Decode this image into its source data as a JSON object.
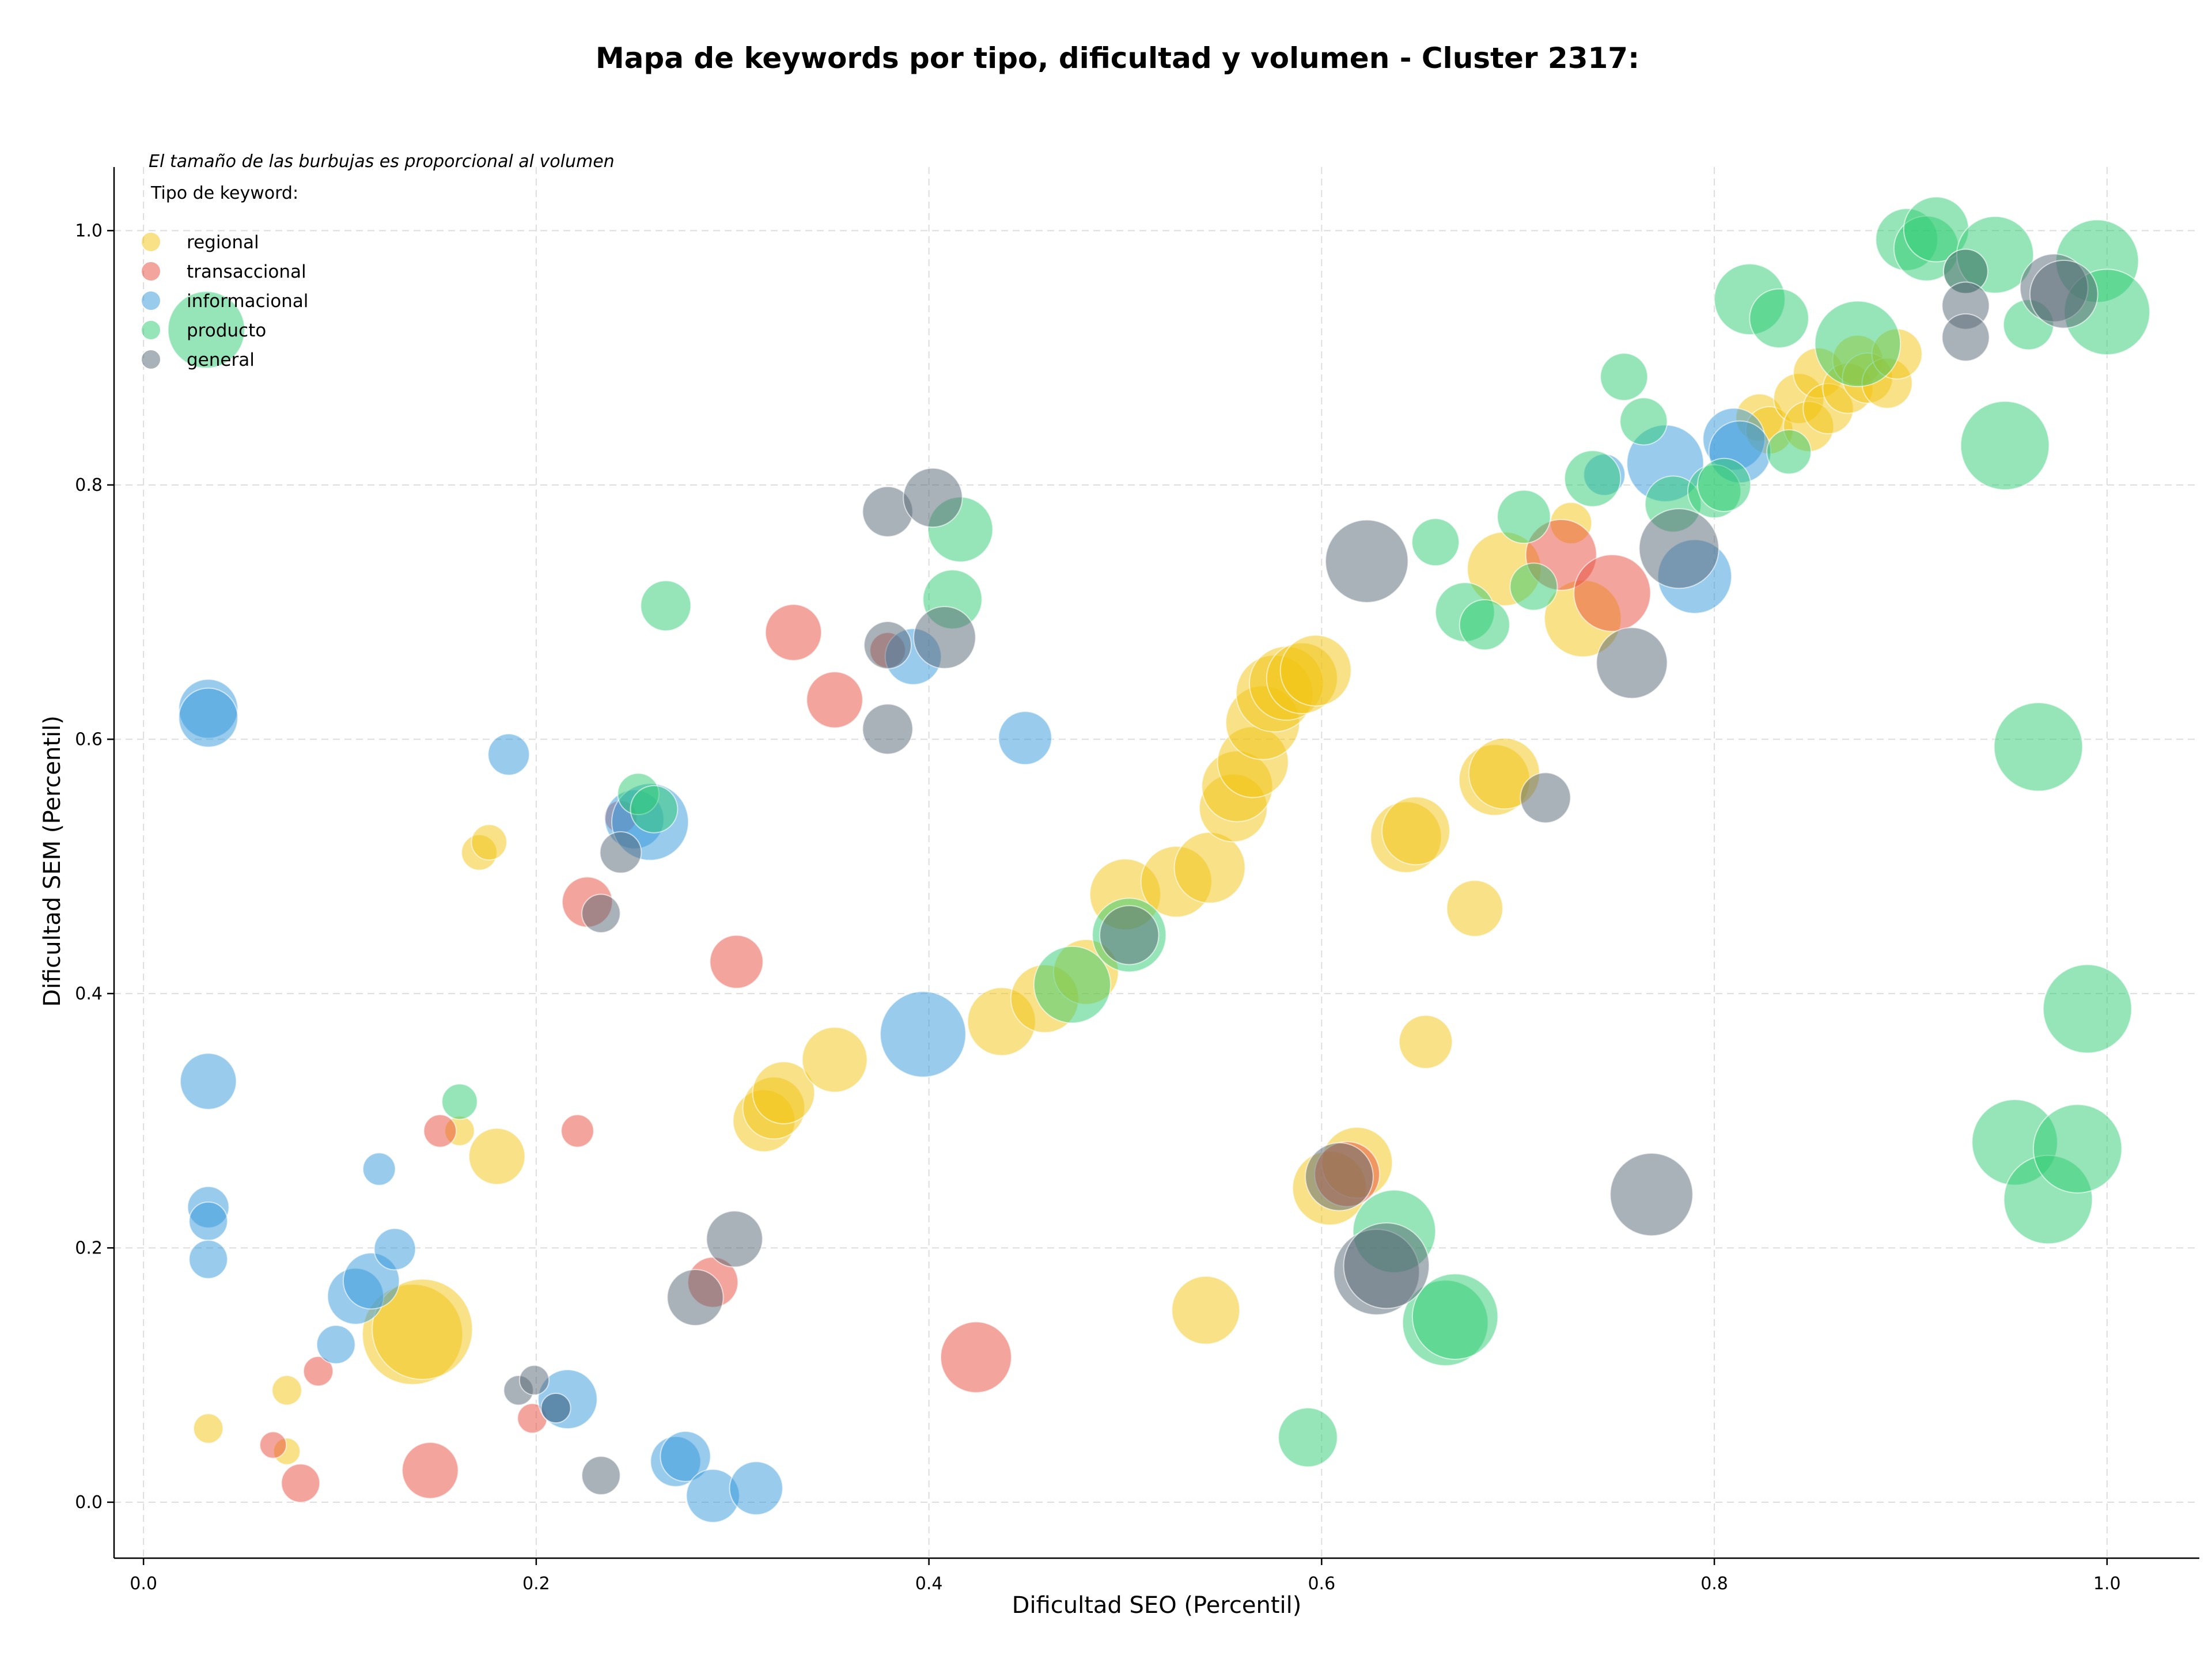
{
  "chart_data": {
    "type": "scatter",
    "title": "Mapa de keywords por tipo, dificultad y volumen - Cluster 2317:",
    "subtitle": "El tamaño de las burbujas es proporcional al volumen",
    "xlabel": "Dificultad SEO (Percentil)",
    "ylabel": "Dificultad SEM (Percentil)",
    "xlim": [
      -0.015,
      1.047
    ],
    "ylim": [
      -0.044,
      1.05
    ],
    "xticks": [
      0.0,
      0.2,
      0.4,
      0.6,
      0.8,
      1.0
    ],
    "xtick_labels": [
      "0.0",
      "0.2",
      "0.4",
      "0.6",
      "0.8",
      "1.0"
    ],
    "yticks": [
      0.0,
      0.2,
      0.4,
      0.6,
      0.8,
      1.0
    ],
    "ytick_labels": [
      "0.0",
      "0.2",
      "0.4",
      "0.6",
      "0.8",
      "1.0"
    ],
    "grid": true,
    "legend": {
      "title": "Tipo de keyword:",
      "placement": "top-left"
    },
    "series": [
      {
        "name": "regional",
        "color": "#f1c40f",
        "points": [
          {
            "x": 0.033,
            "y": 0.058,
            "r": 10
          },
          {
            "x": 0.073,
            "y": 0.088,
            "r": 10
          },
          {
            "x": 0.073,
            "y": 0.04,
            "r": 9
          },
          {
            "x": 0.137,
            "y": 0.132,
            "r": 34
          },
          {
            "x": 0.142,
            "y": 0.136,
            "r": 34
          },
          {
            "x": 0.161,
            "y": 0.292,
            "r": 10
          },
          {
            "x": 0.171,
            "y": 0.511,
            "r": 12
          },
          {
            "x": 0.176,
            "y": 0.519,
            "r": 12
          },
          {
            "x": 0.18,
            "y": 0.272,
            "r": 19
          },
          {
            "x": 0.316,
            "y": 0.3,
            "r": 21
          },
          {
            "x": 0.321,
            "y": 0.31,
            "r": 21
          },
          {
            "x": 0.326,
            "y": 0.322,
            "r": 21
          },
          {
            "x": 0.352,
            "y": 0.348,
            "r": 22
          },
          {
            "x": 0.437,
            "y": 0.378,
            "r": 23
          },
          {
            "x": 0.459,
            "y": 0.396,
            "r": 23
          },
          {
            "x": 0.48,
            "y": 0.417,
            "r": 22
          },
          {
            "x": 0.5,
            "y": 0.478,
            "r": 24
          },
          {
            "x": 0.526,
            "y": 0.488,
            "r": 24
          },
          {
            "x": 0.543,
            "y": 0.499,
            "r": 24
          },
          {
            "x": 0.541,
            "y": 0.151,
            "r": 23
          },
          {
            "x": 0.555,
            "y": 0.546,
            "r": 23
          },
          {
            "x": 0.557,
            "y": 0.563,
            "r": 24
          },
          {
            "x": 0.565,
            "y": 0.582,
            "r": 24
          },
          {
            "x": 0.57,
            "y": 0.613,
            "r": 25
          },
          {
            "x": 0.576,
            "y": 0.636,
            "r": 26
          },
          {
            "x": 0.582,
            "y": 0.644,
            "r": 25
          },
          {
            "x": 0.59,
            "y": 0.648,
            "r": 24
          },
          {
            "x": 0.597,
            "y": 0.654,
            "r": 24
          },
          {
            "x": 0.604,
            "y": 0.247,
            "r": 25
          },
          {
            "x": 0.618,
            "y": 0.267,
            "r": 24
          },
          {
            "x": 0.643,
            "y": 0.523,
            "r": 24
          },
          {
            "x": 0.648,
            "y": 0.528,
            "r": 23
          },
          {
            "x": 0.653,
            "y": 0.362,
            "r": 18
          },
          {
            "x": 0.678,
            "y": 0.467,
            "r": 19
          },
          {
            "x": 0.688,
            "y": 0.568,
            "r": 24
          },
          {
            "x": 0.693,
            "y": 0.573,
            "r": 24
          },
          {
            "x": 0.693,
            "y": 0.734,
            "r": 25
          },
          {
            "x": 0.727,
            "y": 0.77,
            "r": 14
          },
          {
            "x": 0.733,
            "y": 0.695,
            "r": 26
          },
          {
            "x": 0.823,
            "y": 0.853,
            "r": 16
          },
          {
            "x": 0.828,
            "y": 0.843,
            "r": 16
          },
          {
            "x": 0.843,
            "y": 0.868,
            "r": 17
          },
          {
            "x": 0.848,
            "y": 0.846,
            "r": 17
          },
          {
            "x": 0.853,
            "y": 0.888,
            "r": 17
          },
          {
            "x": 0.858,
            "y": 0.86,
            "r": 17
          },
          {
            "x": 0.868,
            "y": 0.876,
            "r": 17
          },
          {
            "x": 0.873,
            "y": 0.898,
            "r": 17
          },
          {
            "x": 0.878,
            "y": 0.884,
            "r": 17
          },
          {
            "x": 0.888,
            "y": 0.88,
            "r": 17
          },
          {
            "x": 0.893,
            "y": 0.903,
            "r": 17
          }
        ]
      },
      {
        "name": "transaccional",
        "color": "#e74c3c",
        "points": [
          {
            "x": 0.066,
            "y": 0.045,
            "r": 9
          },
          {
            "x": 0.08,
            "y": 0.015,
            "r": 13
          },
          {
            "x": 0.089,
            "y": 0.103,
            "r": 10
          },
          {
            "x": 0.146,
            "y": 0.025,
            "r": 19
          },
          {
            "x": 0.151,
            "y": 0.292,
            "r": 11
          },
          {
            "x": 0.198,
            "y": 0.066,
            "r": 10
          },
          {
            "x": 0.221,
            "y": 0.292,
            "r": 11
          },
          {
            "x": 0.226,
            "y": 0.472,
            "r": 17
          },
          {
            "x": 0.243,
            "y": 0.539,
            "r": 11
          },
          {
            "x": 0.29,
            "y": 0.173,
            "r": 17
          },
          {
            "x": 0.302,
            "y": 0.425,
            "r": 18
          },
          {
            "x": 0.331,
            "y": 0.684,
            "r": 19
          },
          {
            "x": 0.352,
            "y": 0.631,
            "r": 19
          },
          {
            "x": 0.379,
            "y": 0.67,
            "r": 12
          },
          {
            "x": 0.424,
            "y": 0.114,
            "r": 24
          },
          {
            "x": 0.613,
            "y": 0.258,
            "r": 22
          },
          {
            "x": 0.722,
            "y": 0.745,
            "r": 24
          },
          {
            "x": 0.748,
            "y": 0.715,
            "r": 26
          }
        ]
      },
      {
        "name": "informacional",
        "color": "#3498db",
        "points": [
          {
            "x": 0.033,
            "y": 0.624,
            "r": 20
          },
          {
            "x": 0.033,
            "y": 0.617,
            "r": 20
          },
          {
            "x": 0.033,
            "y": 0.331,
            "r": 19
          },
          {
            "x": 0.033,
            "y": 0.232,
            "r": 14
          },
          {
            "x": 0.033,
            "y": 0.221,
            "r": 13
          },
          {
            "x": 0.033,
            "y": 0.191,
            "r": 13
          },
          {
            "x": 0.098,
            "y": 0.124,
            "r": 13
          },
          {
            "x": 0.108,
            "y": 0.162,
            "r": 19
          },
          {
            "x": 0.116,
            "y": 0.174,
            "r": 19
          },
          {
            "x": 0.12,
            "y": 0.262,
            "r": 11
          },
          {
            "x": 0.128,
            "y": 0.199,
            "r": 14
          },
          {
            "x": 0.186,
            "y": 0.588,
            "r": 14
          },
          {
            "x": 0.21,
            "y": 0.074,
            "r": 10
          },
          {
            "x": 0.216,
            "y": 0.081,
            "r": 20
          },
          {
            "x": 0.25,
            "y": 0.537,
            "r": 20
          },
          {
            "x": 0.258,
            "y": 0.535,
            "r": 26
          },
          {
            "x": 0.271,
            "y": 0.032,
            "r": 17
          },
          {
            "x": 0.276,
            "y": 0.036,
            "r": 17
          },
          {
            "x": 0.29,
            "y": 0.005,
            "r": 18
          },
          {
            "x": 0.312,
            "y": 0.011,
            "r": 18
          },
          {
            "x": 0.392,
            "y": 0.665,
            "r": 19
          },
          {
            "x": 0.397,
            "y": 0.368,
            "r": 29
          },
          {
            "x": 0.449,
            "y": 0.601,
            "r": 18
          },
          {
            "x": 0.744,
            "y": 0.808,
            "r": 14
          },
          {
            "x": 0.775,
            "y": 0.817,
            "r": 26
          },
          {
            "x": 0.79,
            "y": 0.728,
            "r": 25
          },
          {
            "x": 0.81,
            "y": 0.836,
            "r": 21
          },
          {
            "x": 0.813,
            "y": 0.826,
            "r": 21
          }
        ]
      },
      {
        "name": "producto",
        "color": "#2ecc71",
        "points": [
          {
            "x": 0.032,
            "y": 0.922,
            "r": 26
          },
          {
            "x": 0.161,
            "y": 0.315,
            "r": 12
          },
          {
            "x": 0.252,
            "y": 0.557,
            "r": 14
          },
          {
            "x": 0.26,
            "y": 0.545,
            "r": 16
          },
          {
            "x": 0.266,
            "y": 0.705,
            "r": 17
          },
          {
            "x": 0.412,
            "y": 0.71,
            "r": 20
          },
          {
            "x": 0.416,
            "y": 0.765,
            "r": 22
          },
          {
            "x": 0.473,
            "y": 0.407,
            "r": 26
          },
          {
            "x": 0.502,
            "y": 0.446,
            "r": 25
          },
          {
            "x": 0.593,
            "y": 0.051,
            "r": 20
          },
          {
            "x": 0.637,
            "y": 0.213,
            "r": 28
          },
          {
            "x": 0.658,
            "y": 0.755,
            "r": 16
          },
          {
            "x": 0.663,
            "y": 0.141,
            "r": 29
          },
          {
            "x": 0.668,
            "y": 0.146,
            "r": 29
          },
          {
            "x": 0.673,
            "y": 0.7,
            "r": 20
          },
          {
            "x": 0.683,
            "y": 0.69,
            "r": 17
          },
          {
            "x": 0.703,
            "y": 0.775,
            "r": 18
          },
          {
            "x": 0.708,
            "y": 0.72,
            "r": 16
          },
          {
            "x": 0.738,
            "y": 0.805,
            "r": 19
          },
          {
            "x": 0.754,
            "y": 0.885,
            "r": 16
          },
          {
            "x": 0.764,
            "y": 0.85,
            "r": 16
          },
          {
            "x": 0.779,
            "y": 0.785,
            "r": 19
          },
          {
            "x": 0.8,
            "y": 0.795,
            "r": 18
          },
          {
            "x": 0.805,
            "y": 0.8,
            "r": 18
          },
          {
            "x": 0.818,
            "y": 0.946,
            "r": 24
          },
          {
            "x": 0.833,
            "y": 0.931,
            "r": 20
          },
          {
            "x": 0.838,
            "y": 0.826,
            "r": 15
          },
          {
            "x": 0.873,
            "y": 0.911,
            "r": 29
          },
          {
            "x": 0.898,
            "y": 0.993,
            "r": 21
          },
          {
            "x": 0.908,
            "y": 0.986,
            "r": 22
          },
          {
            "x": 0.913,
            "y": 1.001,
            "r": 22
          },
          {
            "x": 0.928,
            "y": 0.968,
            "r": 15
          },
          {
            "x": 0.943,
            "y": 0.981,
            "r": 26
          },
          {
            "x": 0.948,
            "y": 0.831,
            "r": 30
          },
          {
            "x": 0.953,
            "y": 0.283,
            "r": 29
          },
          {
            "x": 0.96,
            "y": 0.926,
            "r": 17
          },
          {
            "x": 0.965,
            "y": 0.594,
            "r": 30
          },
          {
            "x": 0.97,
            "y": 0.238,
            "r": 30
          },
          {
            "x": 0.985,
            "y": 0.278,
            "r": 30
          },
          {
            "x": 0.99,
            "y": 0.388,
            "r": 30
          },
          {
            "x": 0.995,
            "y": 0.976,
            "r": 28
          },
          {
            "x": 1.0,
            "y": 0.936,
            "r": 29
          }
        ]
      },
      {
        "name": "general",
        "color": "#566573",
        "points": [
          {
            "x": 0.191,
            "y": 0.088,
            "r": 10
          },
          {
            "x": 0.199,
            "y": 0.096,
            "r": 10
          },
          {
            "x": 0.21,
            "y": 0.074,
            "r": 10
          },
          {
            "x": 0.233,
            "y": 0.021,
            "r": 13
          },
          {
            "x": 0.233,
            "y": 0.463,
            "r": 13
          },
          {
            "x": 0.243,
            "y": 0.511,
            "r": 14
          },
          {
            "x": 0.281,
            "y": 0.161,
            "r": 19
          },
          {
            "x": 0.301,
            "y": 0.207,
            "r": 19
          },
          {
            "x": 0.379,
            "y": 0.779,
            "r": 17
          },
          {
            "x": 0.379,
            "y": 0.674,
            "r": 16
          },
          {
            "x": 0.379,
            "y": 0.608,
            "r": 17
          },
          {
            "x": 0.402,
            "y": 0.79,
            "r": 20
          },
          {
            "x": 0.408,
            "y": 0.68,
            "r": 21
          },
          {
            "x": 0.502,
            "y": 0.446,
            "r": 20
          },
          {
            "x": 0.609,
            "y": 0.256,
            "r": 23
          },
          {
            "x": 0.623,
            "y": 0.74,
            "r": 28
          },
          {
            "x": 0.628,
            "y": 0.181,
            "r": 29
          },
          {
            "x": 0.633,
            "y": 0.186,
            "r": 29
          },
          {
            "x": 0.714,
            "y": 0.554,
            "r": 17
          },
          {
            "x": 0.758,
            "y": 0.66,
            "r": 24
          },
          {
            "x": 0.768,
            "y": 0.242,
            "r": 28
          },
          {
            "x": 0.782,
            "y": 0.75,
            "r": 27
          },
          {
            "x": 0.928,
            "y": 0.968,
            "r": 15
          },
          {
            "x": 0.928,
            "y": 0.941,
            "r": 16
          },
          {
            "x": 0.928,
            "y": 0.916,
            "r": 16
          },
          {
            "x": 0.973,
            "y": 0.955,
            "r": 23
          },
          {
            "x": 0.978,
            "y": 0.95,
            "r": 23
          }
        ]
      }
    ]
  }
}
